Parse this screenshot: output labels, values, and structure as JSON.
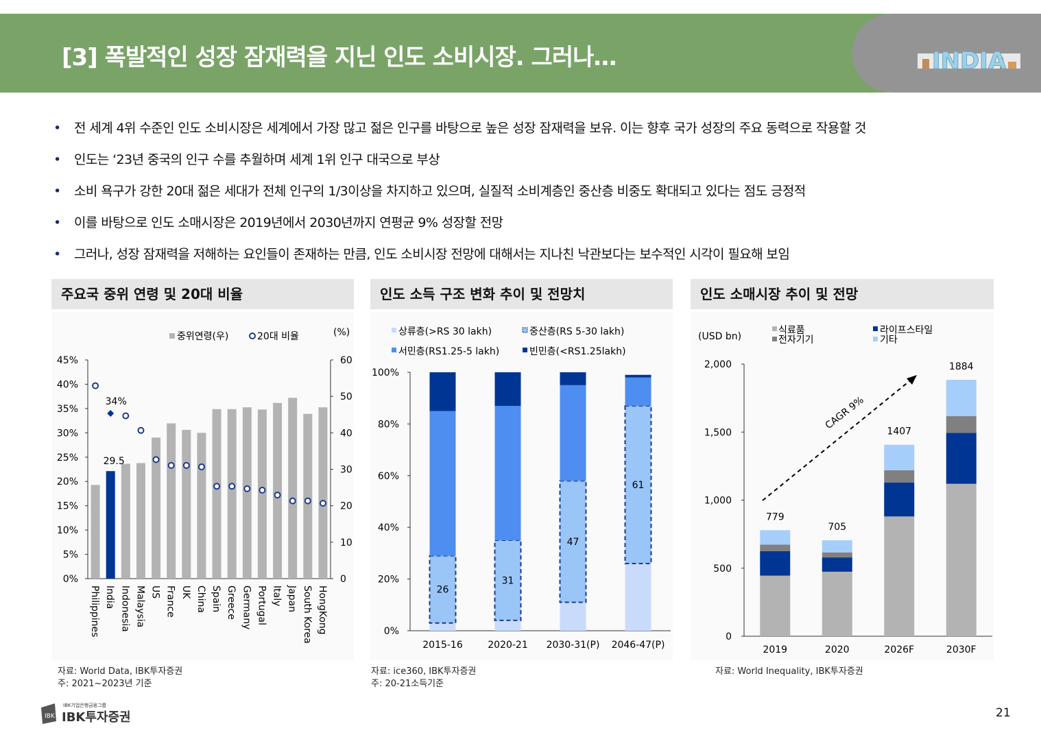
{
  "header": {
    "title": "[3] 폭발적인 성장 잠재력을 지닌 인도 소비시장. 그러나…",
    "badge_text": "INDIA",
    "colors": {
      "green": "#7aa368",
      "gray": "#949494"
    }
  },
  "bullets": [
    "전 세계 4위 수준인 인도 소비시장은 세계에서 가장 많고 젊은 인구를 바탕으로 높은 성장 잠재력을 보유. 이는 향후 국가 성장의 주요 동력으로 작용할 것",
    "인도는 ‘23년 중국의 인구 수를 추월하며 세계 1위 인구 대국으로 부상",
    "소비 욕구가 강한 20대 젊은 세대가 전체 인구의 1/3이상을 차지하고 있으며, 실질적 소비계층인 중산층 비중도 확대되고 있다는 점도 긍정적",
    "이를 바탕으로 인도 소매시장은 2019년에서 2030년까지 연평균 9% 성장할 전망",
    "그러나, 성장 잠재력을 저해하는 요인들이 존재하는 만큼, 인도 소비시장 전망에 대해서는 지나친 낙관보다는 보수적인 시각이 필요해 보임"
  ],
  "panels": {
    "left": {
      "title": "주요국 중위 연령 및 20대 비율",
      "notes": [
        "자료: World Data, IBK투자증권",
        "주: 2021~2023년 기준"
      ]
    },
    "middle": {
      "title": "인도 소득 구조 변화 추이 및 전망치",
      "notes": [
        "자료: ice360, IBK투자증권",
        "주: 20-21소득기준"
      ]
    },
    "right": {
      "title": "인도 소매시장 추이 및 전망",
      "notes": [
        "자료: World Inequality, IBK투자증권"
      ]
    }
  },
  "chart_data": [
    {
      "type": "bar",
      "title": "주요국 중위 연령 및 20대 비율",
      "categories": [
        "Philippines",
        "India",
        "Indonesia",
        "Malaysia",
        "US",
        "France",
        "UK",
        "China",
        "Spain",
        "Greece",
        "Germany",
        "Portugal",
        "Italy",
        "Japan",
        "South Korea",
        "HongKong"
      ],
      "series": [
        {
          "name": "중위연령(우)",
          "axis": "right",
          "values": [
            25.7,
            29.5,
            31.5,
            31.7,
            38.7,
            42.6,
            40.8,
            40.0,
            46.5,
            46.5,
            47.0,
            46.4,
            48.2,
            49.6,
            45.2,
            47.0
          ]
        },
        {
          "name": "20대 비율",
          "axis": "left",
          "values": [
            39.7,
            34.0,
            33.5,
            30.5,
            24.5,
            23.3,
            23.3,
            23.0,
            19.0,
            19.0,
            18.5,
            18.2,
            17.2,
            16.0,
            16.0,
            15.5
          ]
        }
      ],
      "highlight_category": "India",
      "highlight_labels": {
        "bar": "29.5",
        "point": "34%"
      },
      "ylim_left": [
        0,
        45
      ],
      "ylim_right": [
        0,
        60
      ],
      "left_ticks": [
        "0%",
        "5%",
        "10%",
        "15%",
        "20%",
        "25%",
        "30%",
        "35%",
        "40%",
        "45%"
      ],
      "right_ticks": [
        "0",
        "10",
        "20",
        "30",
        "40",
        "50",
        "60"
      ],
      "right_unit": "(%)",
      "legend": [
        "중위연령(우)",
        "20대 비율"
      ],
      "colors": {
        "bar": "#b3b3b3",
        "highlight": "#003594",
        "marker": "#1f3a8a"
      }
    },
    {
      "type": "bar",
      "stacked": true,
      "title": "인도 소득 구조 변화 추이 및 전망치",
      "categories": [
        "2015-16",
        "2020-21",
        "2030-31(P)",
        "2046-47(P)"
      ],
      "series": [
        {
          "name": "상류층(>RS 30 lakh)",
          "values": [
            3,
            4,
            11,
            26
          ],
          "color": "#c9dbfb"
        },
        {
          "name": "중산층(RS 5-30 lakh)",
          "values": [
            26,
            31,
            47,
            61
          ],
          "color": "#99c5f7",
          "dashed": true
        },
        {
          "name": "서민층(RS1.25-5 lakh)",
          "values": [
            56,
            52,
            37,
            11
          ],
          "color": "#4d8ef0"
        },
        {
          "name": "빈민층(<RS1.25lakh)",
          "values": [
            15,
            13,
            5,
            1
          ],
          "color": "#003594"
        }
      ],
      "data_labels": [
        "26",
        "31",
        "47",
        "61"
      ],
      "ylim": [
        0,
        100
      ],
      "y_ticks": [
        "0%",
        "20%",
        "40%",
        "60%",
        "80%",
        "100%"
      ]
    },
    {
      "type": "bar",
      "stacked": true,
      "title": "인도 소매시장 추이 및 전망",
      "unit": "(USD bn)",
      "categories": [
        "2019",
        "2020",
        "2026F",
        "2030F"
      ],
      "series": [
        {
          "name": "식료품",
          "values": [
            445,
            474,
            880,
            1120
          ],
          "color": "#b3b3b3"
        },
        {
          "name": "라이프스타일",
          "values": [
            180,
            105,
            250,
            375
          ],
          "color": "#003594"
        },
        {
          "name": "전자기기",
          "values": [
            48,
            37,
            90,
            122
          ],
          "color": "#808080"
        },
        {
          "name": "기타",
          "values": [
            106,
            89,
            187,
            267
          ],
          "color": "#a6cefa"
        }
      ],
      "totals": [
        "779",
        "705",
        "1407",
        "1884"
      ],
      "ylim": [
        0,
        2000
      ],
      "y_ticks": [
        "0",
        "500",
        "1,000",
        "1,500",
        "2,000"
      ],
      "annotation": "CAGR 9%"
    }
  ],
  "footer": {
    "group_text": "IBK기업은행금융그룹",
    "brand": "IBK투자증권",
    "page_number": "21"
  }
}
